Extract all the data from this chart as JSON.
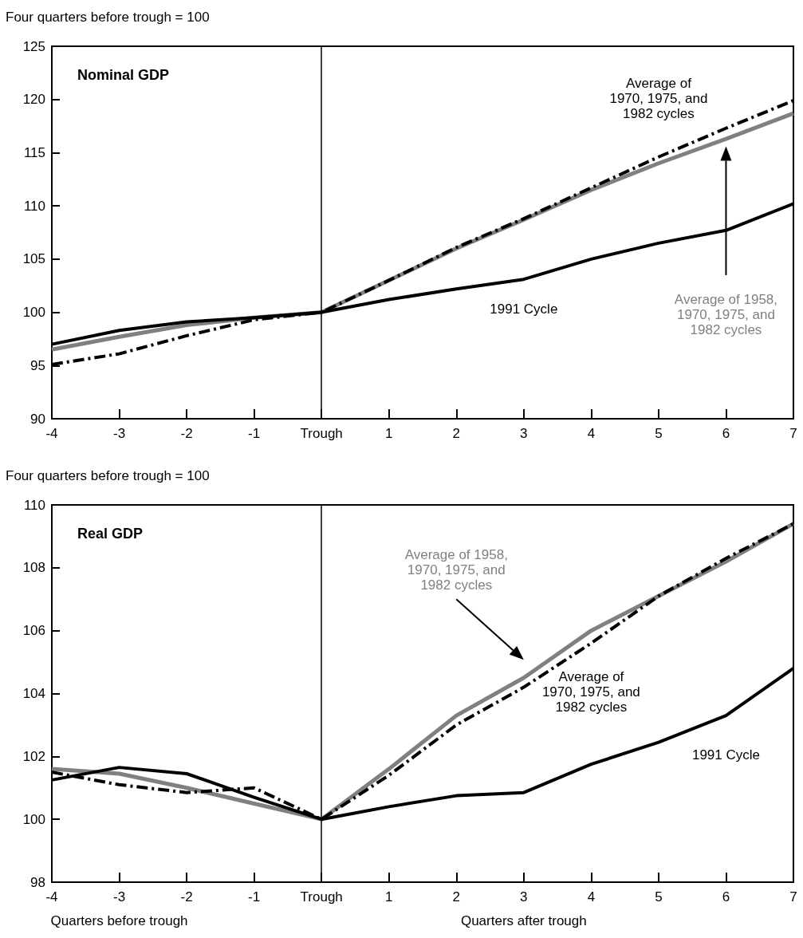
{
  "chart_data": [
    {
      "type": "line",
      "title": "Nominal GDP",
      "ylabel": "Four quarters before trough = 100",
      "categories": [
        "-4",
        "-3",
        "-2",
        "-1",
        "Trough",
        "1",
        "2",
        "3",
        "4",
        "5",
        "6",
        "7"
      ],
      "series": [
        {
          "name": "1991 Cycle",
          "color": "#000000",
          "line_style": "solid",
          "values": [
            97.0,
            98.3,
            99.1,
            99.5,
            100,
            101.2,
            102.2,
            103.1,
            105.0,
            106.5,
            107.7,
            110.2
          ]
        },
        {
          "name": "Average of 1970, 1975, and 1982 cycles",
          "color": "#000000",
          "line_style": "dashed",
          "values": [
            95.1,
            96.1,
            97.8,
            99.3,
            100,
            103.0,
            106.1,
            108.8,
            111.7,
            114.6,
            117.3,
            119.9
          ]
        },
        {
          "name": "Average of 1958, 1970, 1975, and 1982 cycles",
          "color": "#808080",
          "line_style": "solid",
          "values": [
            96.5,
            97.7,
            98.8,
            99.5,
            100,
            103.0,
            106.0,
            108.7,
            111.5,
            114.0,
            116.3,
            118.7
          ]
        }
      ],
      "ylim": [
        90,
        125
      ],
      "yticks": [
        90,
        95,
        100,
        105,
        110,
        115,
        120,
        125
      ],
      "ref_lines": [
        {
          "axis": "x",
          "value": "Trough",
          "color": "#000000"
        }
      ],
      "grid": false,
      "legend": false,
      "marker": "none"
    },
    {
      "type": "line",
      "title": "Real GDP",
      "ylabel": "Four quarters before trough = 100",
      "categories": [
        "-4",
        "-3",
        "-2",
        "-1",
        "Trough",
        "1",
        "2",
        "3",
        "4",
        "5",
        "6",
        "7"
      ],
      "series": [
        {
          "name": "1991 Cycle",
          "color": "#000000",
          "line_style": "solid",
          "values": [
            101.25,
            101.65,
            101.45,
            100.7,
            100,
            100.4,
            100.75,
            100.85,
            101.75,
            102.45,
            103.3,
            104.8
          ]
        },
        {
          "name": "Average of 1970, 1975, and 1982 cycles",
          "color": "#000000",
          "line_style": "dashed",
          "values": [
            101.5,
            101.1,
            100.85,
            101.0,
            100,
            101.4,
            103.0,
            104.2,
            105.6,
            107.1,
            108.3,
            109.4
          ]
        },
        {
          "name": "Average of 1958, 1970, 1975, and 1982 cycles",
          "color": "#808080",
          "line_style": "solid",
          "values": [
            101.6,
            101.45,
            101.0,
            100.5,
            100,
            101.6,
            103.3,
            104.5,
            106.0,
            107.1,
            108.2,
            109.4
          ]
        }
      ],
      "ylim": [
        98,
        110
      ],
      "yticks": [
        98,
        100,
        102,
        104,
        106,
        108,
        110
      ],
      "ref_lines": [
        {
          "axis": "x",
          "value": "Trough",
          "color": "#000000"
        }
      ],
      "grid": false,
      "legend": false,
      "marker": "none",
      "annotations": [
        "Quarters before trough",
        "Quarters after trough"
      ]
    }
  ]
}
